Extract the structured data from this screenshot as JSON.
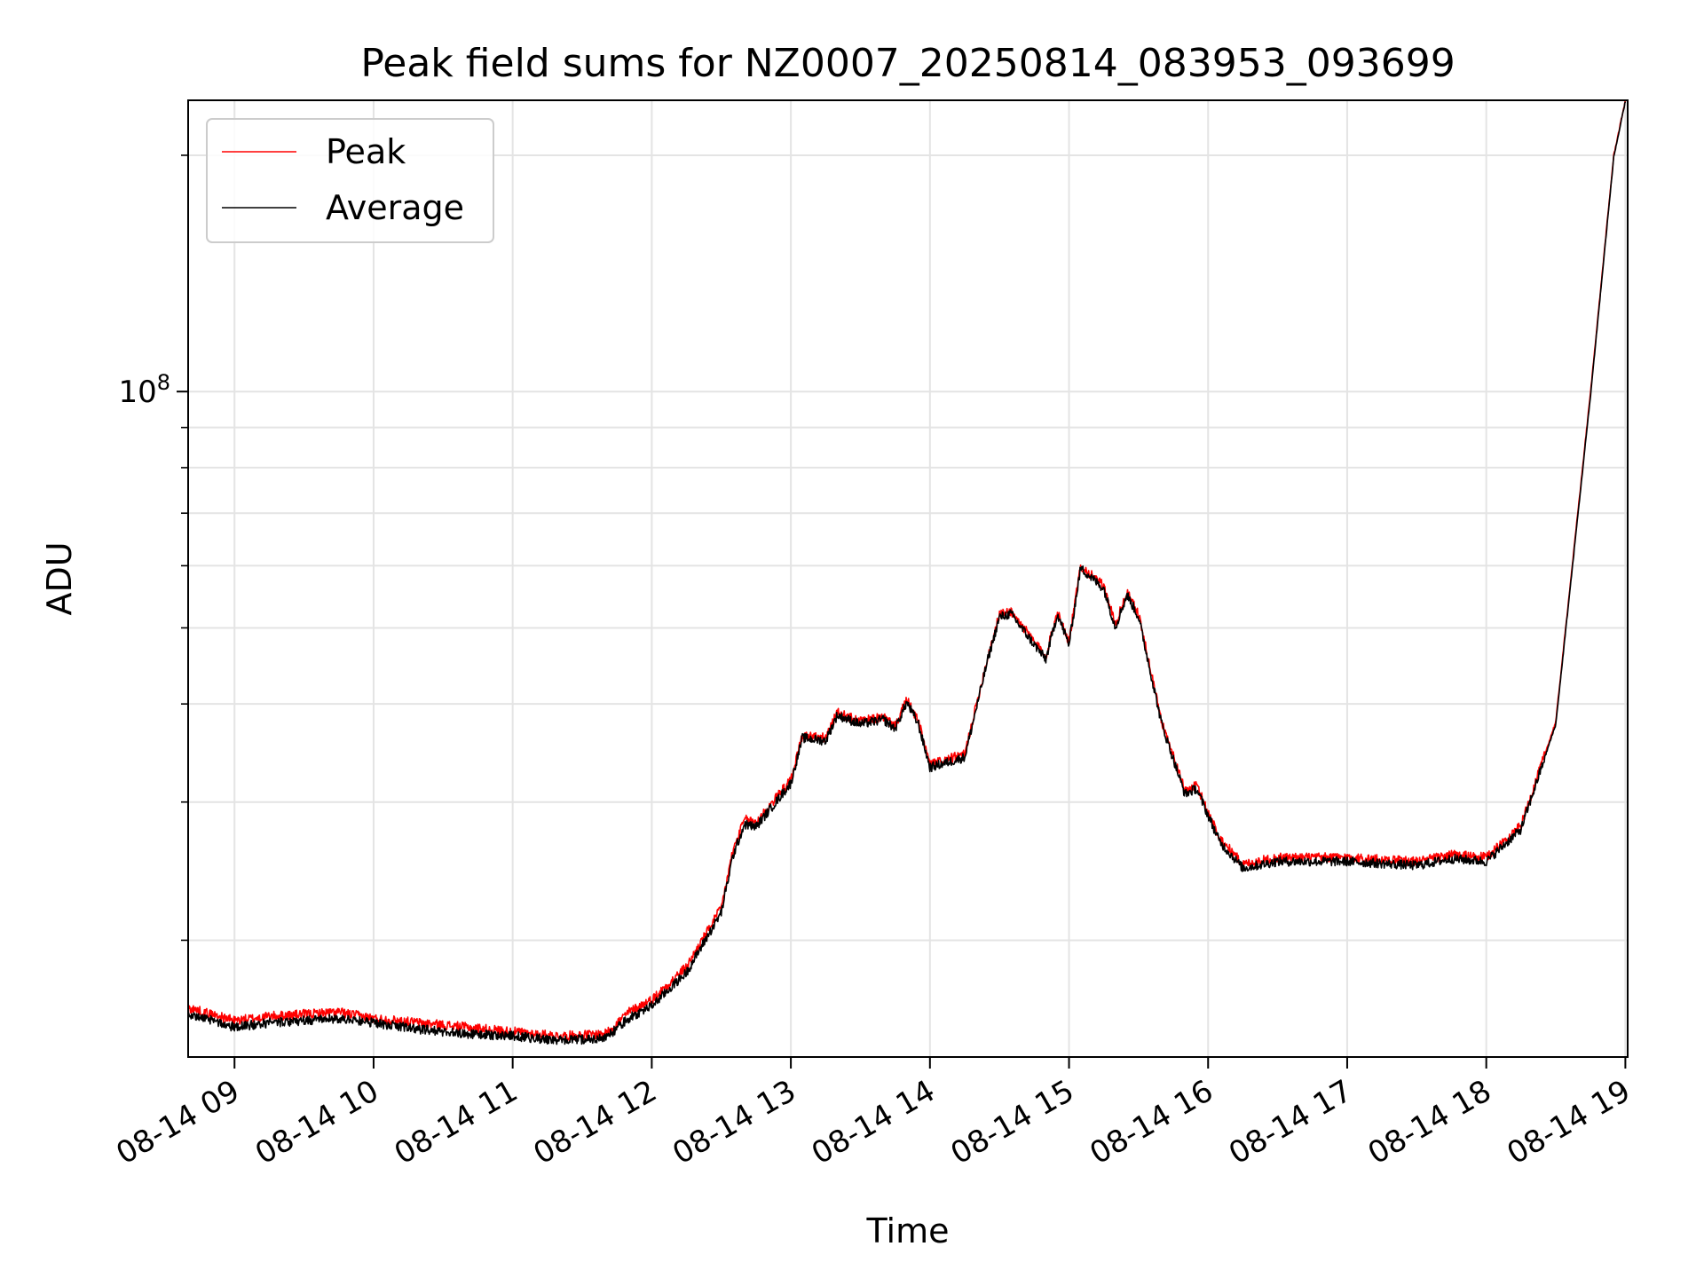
{
  "chart_data": {
    "type": "line",
    "title": "Peak field sums for NZ0007_20250814_083953_093699",
    "xlabel": "Time",
    "ylabel": "ADU",
    "y_scale": "log",
    "ylim": [
      14200000,
      235000000
    ],
    "xlim": [
      "08-14 08:40",
      "08-14 19:01"
    ],
    "x_tick_labels": [
      "08-14 09",
      "08-14 10",
      "08-14 11",
      "08-14 12",
      "08-14 13",
      "08-14 14",
      "08-14 15",
      "08-14 16",
      "08-14 17",
      "08-14 18",
      "08-14 19"
    ],
    "y_major_tick_label_base": "10",
    "y_major_tick_label_exp": "8",
    "y_major_ticks": [
      100000000
    ],
    "y_minor_ticks": [
      20000000,
      30000000,
      40000000,
      50000000,
      60000000,
      70000000,
      80000000,
      90000000,
      200000000
    ],
    "grid": true,
    "legend_position": "upper-left",
    "series": [
      {
        "name": "Peak",
        "color": "#ff0000",
        "points": [
          [
            "08-14 08:40",
            16400000
          ],
          [
            "08-14 08:50",
            16100000
          ],
          [
            "08-14 09:00",
            15800000
          ],
          [
            "08-14 09:15",
            16000000
          ],
          [
            "08-14 09:30",
            16100000
          ],
          [
            "08-14 09:45",
            16200000
          ],
          [
            "08-14 10:00",
            15900000
          ],
          [
            "08-14 10:20",
            15700000
          ],
          [
            "08-14 10:40",
            15500000
          ],
          [
            "08-14 11:00",
            15300000
          ],
          [
            "08-14 11:20",
            15100000
          ],
          [
            "08-14 11:40",
            15200000
          ],
          [
            "08-14 11:50",
            16200000
          ],
          [
            "08-14 12:00",
            16800000
          ],
          [
            "08-14 12:15",
            18500000
          ],
          [
            "08-14 12:30",
            22000000
          ],
          [
            "08-14 12:35",
            26000000
          ],
          [
            "08-14 12:40",
            28500000
          ],
          [
            "08-14 12:45",
            28300000
          ],
          [
            "08-14 13:00",
            32000000
          ],
          [
            "08-14 13:05",
            36500000
          ],
          [
            "08-14 13:15",
            36200000
          ],
          [
            "08-14 13:20",
            39000000
          ],
          [
            "08-14 13:30",
            38000000
          ],
          [
            "08-14 13:40",
            38500000
          ],
          [
            "08-14 13:45",
            37500000
          ],
          [
            "08-14 13:50",
            40500000
          ],
          [
            "08-14 13:55",
            38000000
          ],
          [
            "08-14 14:00",
            33500000
          ],
          [
            "08-14 14:15",
            34500000
          ],
          [
            "08-14 14:25",
            46000000
          ],
          [
            "08-14 14:30",
            52000000
          ],
          [
            "08-14 14:35",
            52500000
          ],
          [
            "08-14 14:45",
            48000000
          ],
          [
            "08-14 14:50",
            46000000
          ],
          [
            "08-14 14:55",
            52500000
          ],
          [
            "08-14 15:00",
            48000000
          ],
          [
            "08-14 15:05",
            60000000
          ],
          [
            "08-14 15:15",
            56500000
          ],
          [
            "08-14 15:20",
            50500000
          ],
          [
            "08-14 15:25",
            55500000
          ],
          [
            "08-14 15:30",
            52000000
          ],
          [
            "08-14 15:40",
            38000000
          ],
          [
            "08-14 15:50",
            31000000
          ],
          [
            "08-14 15:55",
            31500000
          ],
          [
            "08-14 16:05",
            27000000
          ],
          [
            "08-14 16:15",
            25000000
          ],
          [
            "08-14 16:30",
            25500000
          ],
          [
            "08-14 17:00",
            25500000
          ],
          [
            "08-14 17:30",
            25200000
          ],
          [
            "08-14 17:45",
            25700000
          ],
          [
            "08-14 18:00",
            25500000
          ],
          [
            "08-14 18:15",
            28000000
          ],
          [
            "08-14 18:30",
            38000000
          ],
          [
            "08-14 18:45",
            100000000
          ],
          [
            "08-14 18:55",
            200000000
          ],
          [
            "08-14 19:00",
            235000000
          ]
        ]
      },
      {
        "name": "Average",
        "color": "#000000",
        "points": [
          [
            "08-14 08:40",
            16100000
          ],
          [
            "08-14 08:50",
            15800000
          ],
          [
            "08-14 09:00",
            15500000
          ],
          [
            "08-14 09:15",
            15700000
          ],
          [
            "08-14 09:30",
            15800000
          ],
          [
            "08-14 09:45",
            15900000
          ],
          [
            "08-14 10:00",
            15700000
          ],
          [
            "08-14 10:20",
            15400000
          ],
          [
            "08-14 10:40",
            15200000
          ],
          [
            "08-14 11:00",
            15100000
          ],
          [
            "08-14 11:20",
            14900000
          ],
          [
            "08-14 11:40",
            15000000
          ],
          [
            "08-14 11:50",
            15900000
          ],
          [
            "08-14 12:00",
            16500000
          ],
          [
            "08-14 12:15",
            18200000
          ],
          [
            "08-14 12:30",
            21700000
          ],
          [
            "08-14 12:35",
            25600000
          ],
          [
            "08-14 12:40",
            28100000
          ],
          [
            "08-14 12:45",
            27900000
          ],
          [
            "08-14 13:00",
            31700000
          ],
          [
            "08-14 13:05",
            36200000
          ],
          [
            "08-14 13:15",
            35900000
          ],
          [
            "08-14 13:20",
            38700000
          ],
          [
            "08-14 13:30",
            37700000
          ],
          [
            "08-14 13:40",
            38200000
          ],
          [
            "08-14 13:45",
            37200000
          ],
          [
            "08-14 13:50",
            40200000
          ],
          [
            "08-14 13:55",
            37700000
          ],
          [
            "08-14 14:00",
            33200000
          ],
          [
            "08-14 14:15",
            34200000
          ],
          [
            "08-14 14:25",
            45600000
          ],
          [
            "08-14 14:30",
            51600000
          ],
          [
            "08-14 14:35",
            52100000
          ],
          [
            "08-14 14:45",
            47600000
          ],
          [
            "08-14 14:50",
            45600000
          ],
          [
            "08-14 14:55",
            52100000
          ],
          [
            "08-14 15:00",
            47600000
          ],
          [
            "08-14 15:05",
            59600000
          ],
          [
            "08-14 15:15",
            56100000
          ],
          [
            "08-14 15:20",
            50100000
          ],
          [
            "08-14 15:25",
            55100000
          ],
          [
            "08-14 15:30",
            51600000
          ],
          [
            "08-14 15:40",
            37700000
          ],
          [
            "08-14 15:50",
            30700000
          ],
          [
            "08-14 15:55",
            31200000
          ],
          [
            "08-14 16:05",
            26700000
          ],
          [
            "08-14 16:15",
            24700000
          ],
          [
            "08-14 16:30",
            25200000
          ],
          [
            "08-14 17:00",
            25200000
          ],
          [
            "08-14 17:30",
            24900000
          ],
          [
            "08-14 17:45",
            25400000
          ],
          [
            "08-14 18:00",
            25200000
          ],
          [
            "08-14 18:15",
            27700000
          ],
          [
            "08-14 18:30",
            37700000
          ],
          [
            "08-14 18:45",
            99000000
          ],
          [
            "08-14 18:55",
            199000000
          ],
          [
            "08-14 19:00",
            234000000
          ]
        ]
      }
    ]
  }
}
